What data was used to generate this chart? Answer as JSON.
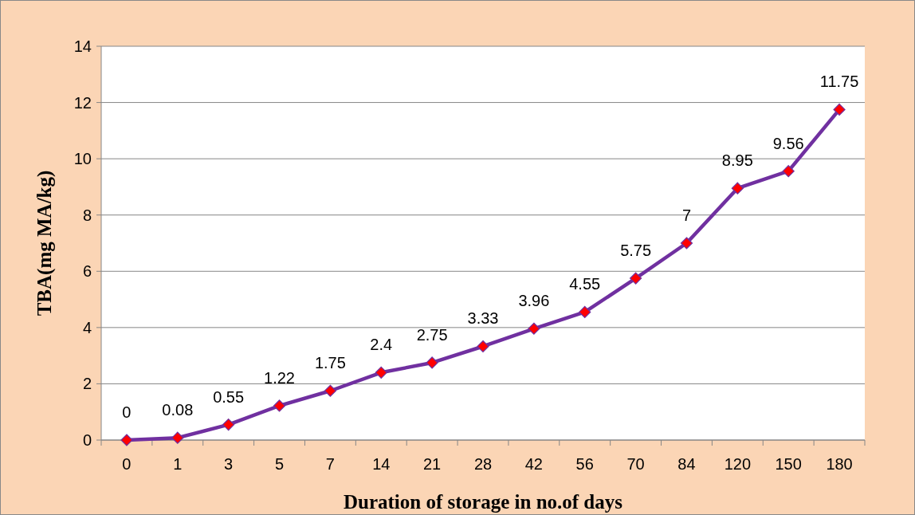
{
  "chart_data": {
    "type": "line",
    "xlabel": "Duration of storage in no.of days",
    "ylabel": "TBA(mg MA/kg)",
    "categories": [
      "0",
      "1",
      "3",
      "5",
      "7",
      "14",
      "21",
      "28",
      "42",
      "56",
      "70",
      "84",
      "120",
      "150",
      "180"
    ],
    "series": [
      {
        "color": "#7030a0",
        "values": [
          0,
          0.08,
          0.55,
          1.22,
          1.75,
          2.4,
          2.75,
          3.33,
          3.96,
          4.55,
          5.75,
          7,
          8.95,
          9.56,
          11.75
        ]
      }
    ],
    "ylim": [
      0,
      14
    ],
    "yticks": [
      0,
      2,
      4,
      6,
      8,
      10,
      12,
      14
    ],
    "grid": "y",
    "marker": "diamond",
    "data_labels": true
  }
}
